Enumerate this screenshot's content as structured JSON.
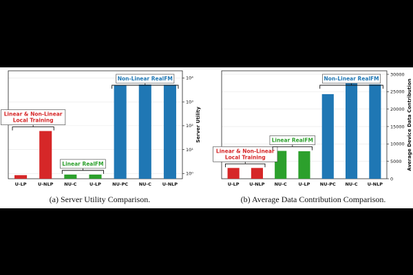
{
  "colors": {
    "red": "#d62728",
    "green": "#2ca02c",
    "blue": "#1f77b4"
  },
  "chart_data": [
    {
      "type": "bar",
      "caption": "(a) Server Utility Comparison.",
      "ylabel": "Server Utility",
      "yscale": "log",
      "ylim": [
        0.6,
        20000
      ],
      "yticks": [
        {
          "value": 1,
          "label": "10⁰"
        },
        {
          "value": 10,
          "label": "10¹"
        },
        {
          "value": 100,
          "label": "10²"
        },
        {
          "value": 1000,
          "label": "10³"
        },
        {
          "value": 10000,
          "label": "10⁴"
        }
      ],
      "categories": [
        "U-LP",
        "U-NLP",
        "NU-C",
        "U-LP",
        "NU-PC",
        "NU-C",
        "U-NLP"
      ],
      "values": [
        0.85,
        60,
        0.9,
        0.9,
        5000,
        5300,
        5200
      ],
      "bar_colors": [
        "red",
        "red",
        "green",
        "green",
        "blue",
        "blue",
        "blue"
      ],
      "groups": [
        {
          "label_lines": [
            "Linear & Non-Linear",
            "Local Training"
          ],
          "color": "red",
          "start": 0,
          "end": 1
        },
        {
          "label_lines": [
            "Linear RealFM"
          ],
          "color": "green",
          "start": 2,
          "end": 3
        },
        {
          "label_lines": [
            "Non-Linear RealFM"
          ],
          "color": "blue",
          "start": 4,
          "end": 6
        }
      ],
      "grid": true
    },
    {
      "type": "bar",
      "caption": "(b) Average Data Contribution Comparison.",
      "ylabel": "Average Device Data Contribution",
      "yscale": "linear",
      "ylim": [
        0,
        31000
      ],
      "yticks": [
        {
          "value": 0,
          "label": "0"
        },
        {
          "value": 5000,
          "label": "5000"
        },
        {
          "value": 10000,
          "label": "10000"
        },
        {
          "value": 15000,
          "label": "15000"
        },
        {
          "value": 20000,
          "label": "20000"
        },
        {
          "value": 25000,
          "label": "25000"
        },
        {
          "value": 30000,
          "label": "30000"
        }
      ],
      "categories": [
        "U-LP",
        "U-NLP",
        "NU-C",
        "U-LP",
        "NU-PC",
        "NU-C",
        "U-NLP"
      ],
      "values": [
        3100,
        3100,
        8000,
        7900,
        24300,
        27700,
        27100
      ],
      "bar_colors": [
        "red",
        "red",
        "green",
        "green",
        "blue",
        "blue",
        "blue"
      ],
      "groups": [
        {
          "label_lines": [
            "Linear & Non-Linear",
            "Local Training"
          ],
          "color": "red",
          "start": 0,
          "end": 1
        },
        {
          "label_lines": [
            "Linear RealFM"
          ],
          "color": "green",
          "start": 2,
          "end": 3
        },
        {
          "label_lines": [
            "Non-Linear RealFM"
          ],
          "color": "blue",
          "start": 4,
          "end": 6
        }
      ],
      "grid": true
    }
  ]
}
